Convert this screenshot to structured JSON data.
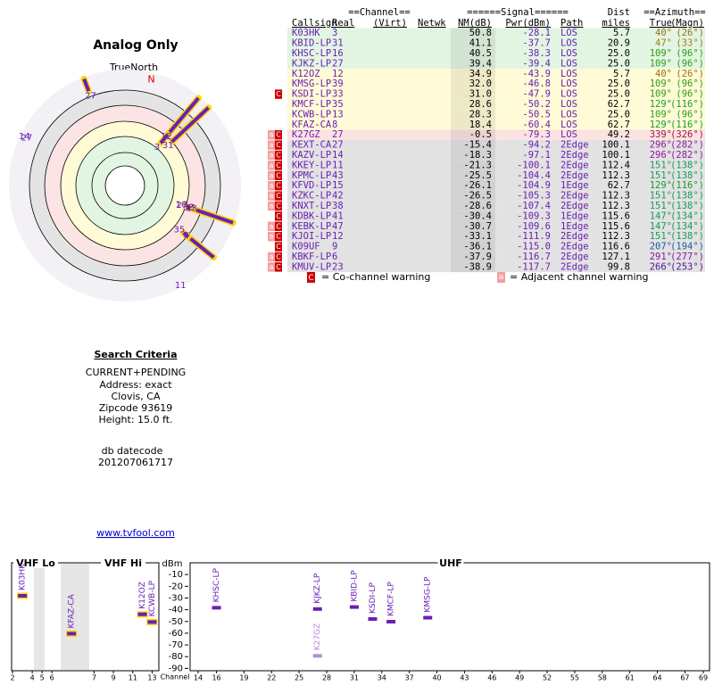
{
  "polar": {
    "title": "Analog Only",
    "true_north_label": "TrueNorth",
    "north_label": "N"
  },
  "table": {
    "header_groups": [
      "==Channel==",
      "======Signal======",
      "Dist",
      "==Azimuth=="
    ],
    "columns": [
      "Callsign",
      "Real",
      "(Virt)",
      "Netwk",
      "NM(dB)",
      "Pwr(dBm)",
      "Path",
      "miles",
      "True",
      "(Magn)"
    ],
    "rows": [
      {
        "callsign": "K03HK",
        "real": 3,
        "nm": 50.8,
        "pwr": -28.1,
        "path": "LOS",
        "dist": 5.7,
        "az_true": {
          "value": 40,
          "label": "40°"
        },
        "az_magn": {
          "value": 26,
          "label": "(26°)"
        },
        "color": "#e2f5e2"
      },
      {
        "callsign": "KBID-LP",
        "real": 31,
        "nm": 41.1,
        "pwr": -37.7,
        "path": "LOS",
        "dist": 20.9,
        "az_true": {
          "value": 47,
          "label": "47°"
        },
        "az_magn": {
          "value": 33,
          "label": "(33°)"
        },
        "color": "#e2f5e2"
      },
      {
        "callsign": "KHSC-LP",
        "real": 16,
        "nm": 40.5,
        "pwr": -38.3,
        "path": "LOS",
        "dist": {
          "value": 25,
          "label": "25.0"
        },
        "az_true": {
          "value": 109,
          "label": "109°"
        },
        "az_magn": {
          "value": 96,
          "label": "(96°)"
        },
        "color": "#e2f5e2"
      },
      {
        "callsign": "KJKZ-LP",
        "real": 27,
        "nm": 39.4,
        "pwr": -39.4,
        "path": "LOS",
        "dist": {
          "value": 25,
          "label": "25.0"
        },
        "az_true": {
          "value": 109,
          "label": "109°"
        },
        "az_magn": {
          "value": 96,
          "label": "(96°)"
        },
        "color": "#e2f5e2"
      },
      {
        "callsign": "K12OZ",
        "real": 12,
        "nm": 34.9,
        "pwr": -43.9,
        "path": "LOS",
        "dist": 5.7,
        "az_true": {
          "value": 40,
          "label": "40°"
        },
        "az_magn": {
          "value": 26,
          "label": "(26°)"
        },
        "color": "#fffbd6"
      },
      {
        "callsign": "KMSG-LP",
        "real": 39,
        "nm": {
          "value": 32,
          "label": "32.0"
        },
        "pwr": -46.8,
        "path": "LOS",
        "dist": {
          "value": 25,
          "label": "25.0"
        },
        "az_true": {
          "value": 109,
          "label": "109°"
        },
        "az_magn": {
          "value": 96,
          "label": "(96°)"
        },
        "color": "#fffbd6"
      },
      {
        "callsign": "KSDI-LP",
        "real": 33,
        "nm": {
          "value": 31,
          "label": "31.0"
        },
        "pwr": -47.9,
        "path": "LOS",
        "dist": {
          "value": 25,
          "label": "25.0"
        },
        "az_true": {
          "value": 109,
          "label": "109°"
        },
        "az_magn": {
          "value": 96,
          "label": "(96°)"
        },
        "warnings": [
          "C"
        ],
        "color": "#fffbd6"
      },
      {
        "callsign": "KMCF-LP",
        "real": 35,
        "nm": 28.6,
        "pwr": -50.2,
        "path": "LOS",
        "dist": 62.7,
        "az_true": {
          "value": 129,
          "label": "129°"
        },
        "az_magn": {
          "value": 116,
          "label": "(116°)"
        },
        "color": "#fffbd6"
      },
      {
        "callsign": "KCWB-LP",
        "real": 13,
        "nm": 28.3,
        "pwr": -50.5,
        "path": "LOS",
        "dist": {
          "value": 25,
          "label": "25.0"
        },
        "az_true": {
          "value": 109,
          "label": "109°"
        },
        "az_magn": {
          "value": 96,
          "label": "(96°)"
        },
        "color": "#fffbd6"
      },
      {
        "callsign": "KFAZ-CA",
        "real": 8,
        "nm": 18.4,
        "pwr": -60.4,
        "path": "LOS",
        "dist": 62.7,
        "az_true": {
          "value": 129,
          "label": "129°"
        },
        "az_magn": {
          "value": 116,
          "label": "(116°)"
        },
        "color": "#fffbd6"
      },
      {
        "callsign": "K27GZ",
        "real": 27,
        "nm": -0.5,
        "pwr": -79.3,
        "path": "LOS",
        "dist": 49.2,
        "az_true": {
          "value": 339,
          "label": "339°"
        },
        "az_magn": {
          "value": 326,
          "label": "(326°)"
        },
        "warnings": [
          "a",
          "C"
        ],
        "color": "#fde2e2"
      },
      {
        "callsign": "KEXT-CA",
        "real": 27,
        "nm": -15.4,
        "pwr": -94.2,
        "path": "2Edge",
        "dist": 100.1,
        "az_true": {
          "value": 296,
          "label": "296°"
        },
        "az_magn": {
          "value": 282,
          "label": "(282°)"
        },
        "warnings": [
          "a",
          "C"
        ],
        "color": "#e2e2e2"
      },
      {
        "callsign": "KAZV-LP",
        "real": 14,
        "nm": -18.3,
        "pwr": -97.1,
        "path": "2Edge",
        "dist": 100.1,
        "az_true": {
          "value": 296,
          "label": "296°"
        },
        "az_magn": {
          "value": 282,
          "label": "(282°)"
        },
        "warnings": [
          "a",
          "C"
        ],
        "color": "#e2e2e2"
      },
      {
        "callsign": "KKEY-LP",
        "real": 11,
        "nm": -21.3,
        "pwr": -100.1,
        "path": "2Edge",
        "dist": 112.4,
        "az_true": {
          "value": 151,
          "label": "151°"
        },
        "az_magn": {
          "value": 138,
          "label": "(138°)"
        },
        "warnings": [
          "a",
          "C"
        ],
        "color": "#e2e2e2"
      },
      {
        "callsign": "KPMC-LP",
        "real": 43,
        "nm": -25.5,
        "pwr": -104.4,
        "path": "2Edge",
        "dist": 112.3,
        "az_true": {
          "value": 151,
          "label": "151°"
        },
        "az_magn": {
          "value": 138,
          "label": "(138°)"
        },
        "warnings": [
          "a",
          "C"
        ],
        "color": "#e2e2e2"
      },
      {
        "callsign": "KFVD-LP",
        "real": 15,
        "nm": -26.1,
        "pwr": -104.9,
        "path": "1Edge",
        "dist": 62.7,
        "az_true": {
          "value": 129,
          "label": "129°"
        },
        "az_magn": {
          "value": 116,
          "label": "(116°)"
        },
        "warnings": [
          "a",
          "C"
        ],
        "color": "#e2e2e2"
      },
      {
        "callsign": "KZKC-LP",
        "real": 42,
        "nm": -26.5,
        "pwr": -105.3,
        "path": "2Edge",
        "dist": 112.3,
        "az_true": {
          "value": 151,
          "label": "151°"
        },
        "az_magn": {
          "value": 138,
          "label": "(138°)"
        },
        "warnings": [
          "a",
          "C"
        ],
        "color": "#e2e2e2"
      },
      {
        "callsign": "KNXT-LP",
        "real": 38,
        "nm": -28.6,
        "pwr": -107.4,
        "path": "2Edge",
        "dist": 112.3,
        "az_true": {
          "value": 151,
          "label": "151°"
        },
        "az_magn": {
          "value": 138,
          "label": "(138°)"
        },
        "warnings": [
          "a",
          "C"
        ],
        "color": "#e2e2e2"
      },
      {
        "callsign": "KDBK-LP",
        "real": 41,
        "nm": -30.4,
        "pwr": -109.3,
        "path": "1Edge",
        "dist": 115.6,
        "az_true": {
          "value": 147,
          "label": "147°"
        },
        "az_magn": {
          "value": 134,
          "label": "(134°)"
        },
        "warnings": [
          "C"
        ],
        "color": "#e2e2e2"
      },
      {
        "callsign": "KEBK-LP",
        "real": 47,
        "nm": -30.7,
        "pwr": -109.6,
        "path": "1Edge",
        "dist": 115.6,
        "az_true": {
          "value": 147,
          "label": "147°"
        },
        "az_magn": {
          "value": 134,
          "label": "(134°)"
        },
        "warnings": [
          "a",
          "C"
        ],
        "color": "#e2e2e2"
      },
      {
        "callsign": "KJOI-LP",
        "real": 12,
        "nm": -33.1,
        "pwr": -111.9,
        "path": "2Edge",
        "dist": 112.3,
        "az_true": {
          "value": 151,
          "label": "151°"
        },
        "az_magn": {
          "value": 138,
          "label": "(138°)"
        },
        "warnings": [
          "a",
          "C"
        ],
        "color": "#e2e2e2"
      },
      {
        "callsign": "K09UF",
        "real": 9,
        "nm": -36.1,
        "pwr": {
          "value": -115,
          "label": "-115.0"
        },
        "path": "2Edge",
        "dist": 116.6,
        "az_true": {
          "value": 207,
          "label": "207°"
        },
        "az_magn": {
          "value": 194,
          "label": "(194°)"
        },
        "warnings": [
          "C"
        ],
        "color": "#e2e2e2"
      },
      {
        "callsign": "KBKF-LP",
        "real": 6,
        "nm": -37.9,
        "pwr": -116.7,
        "path": "2Edge",
        "dist": 127.1,
        "az_true": {
          "value": 291,
          "label": "291°"
        },
        "az_magn": {
          "value": 277,
          "label": "(277°)"
        },
        "warnings": [
          "a",
          "C"
        ],
        "color": "#e2e2e2"
      },
      {
        "callsign": "KMUV-LP",
        "real": 23,
        "nm": -38.9,
        "pwr": -117.7,
        "path": "2Edge",
        "dist": 99.8,
        "az_true": {
          "value": 266,
          "label": "266°"
        },
        "az_magn": {
          "value": 253,
          "label": "(253°)"
        },
        "warnings": [
          "a",
          "C"
        ],
        "color": "#e2e2e2"
      }
    ]
  },
  "legend": {
    "co_icon": "C",
    "co_text": "= Co-channel warning",
    "adj_icon": "a",
    "adj_text": "= Adjacent channel warning"
  },
  "search": {
    "title": "Search Criteria",
    "lines": [
      "CURRENT+PENDING",
      "Address: exact",
      "Clovis, CA",
      "Zipcode 93619",
      "Height: 15.0 ft."
    ],
    "datecode_lines": [
      "db datecode",
      "201207061717"
    ],
    "link": "www.tvfool.com"
  },
  "spectrum": {
    "y_label": "dBm",
    "x_label": "Channel",
    "ylim": [
      -92,
      0
    ],
    "yticks": [
      -10,
      -20,
      -30,
      -40,
      -50,
      -60,
      -70,
      -80,
      -90
    ],
    "bands": [
      {
        "name": "VHF Lo",
        "xlim": [
          1.9,
          9.8
        ],
        "xticks": [
          2,
          4,
          5,
          6
        ]
      },
      {
        "name": "VHF Hi",
        "xlim": [
          6.5,
          13.7
        ],
        "xticks": [
          7,
          9,
          11,
          13
        ]
      },
      {
        "name": "UHF",
        "xlim": [
          13.13,
          69.68
        ],
        "xticks": [
          14,
          16,
          19,
          22,
          25,
          28,
          31,
          34,
          37,
          40,
          43,
          46,
          49,
          52,
          55,
          58,
          61,
          64,
          67,
          69
        ]
      }
    ]
  }
}
